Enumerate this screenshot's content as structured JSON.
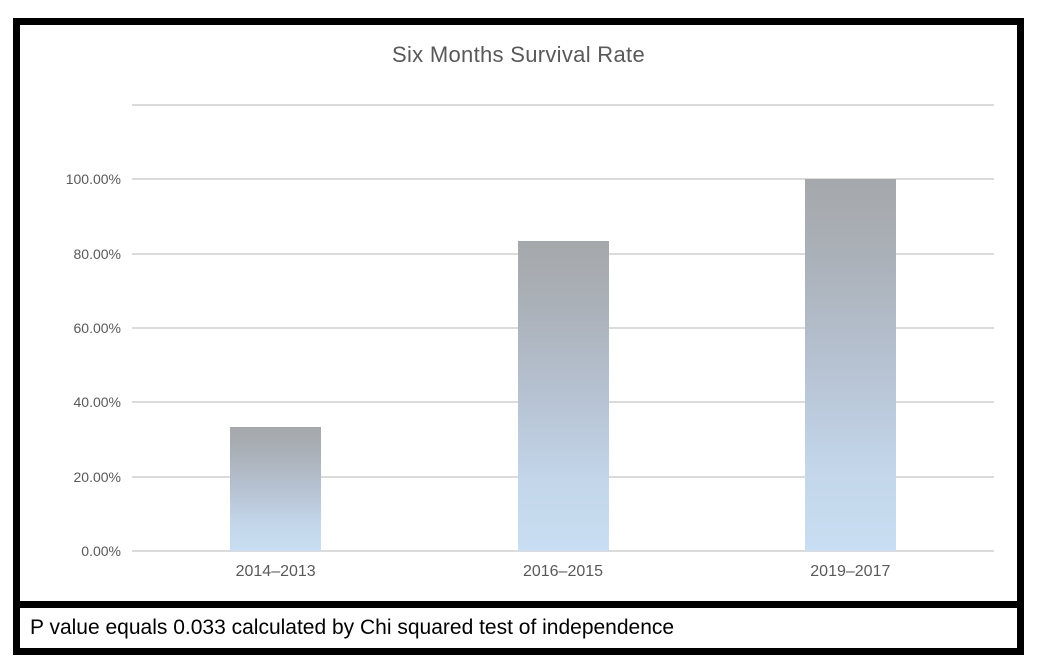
{
  "frame": {
    "border_color": "#000000",
    "background": "#ffffff"
  },
  "caption": {
    "text": "P value equals 0.033 calculated by Chi squared test of independence"
  },
  "chart_data": {
    "type": "bar",
    "title": "Six Months Survival Rate",
    "categories": [
      "2014–2013",
      "2016–2015",
      "2019–2017"
    ],
    "values": [
      33.33,
      83.33,
      100.0
    ],
    "xlabel": "",
    "ylabel": "",
    "ylim": [
      0,
      120
    ],
    "ytick_step": 20,
    "ytick_labels": [
      "0.00%",
      "20.00%",
      "40.00%",
      "60.00%",
      "80.00%",
      "100.00%"
    ],
    "grid": true,
    "legend": "none",
    "colors": {
      "title": "#595959",
      "tick_label": "#595959",
      "gridline": "#dbdbdb",
      "bar_gradient_top": "#a5a8ab",
      "bar_gradient_bottom": "#c9def2"
    }
  }
}
